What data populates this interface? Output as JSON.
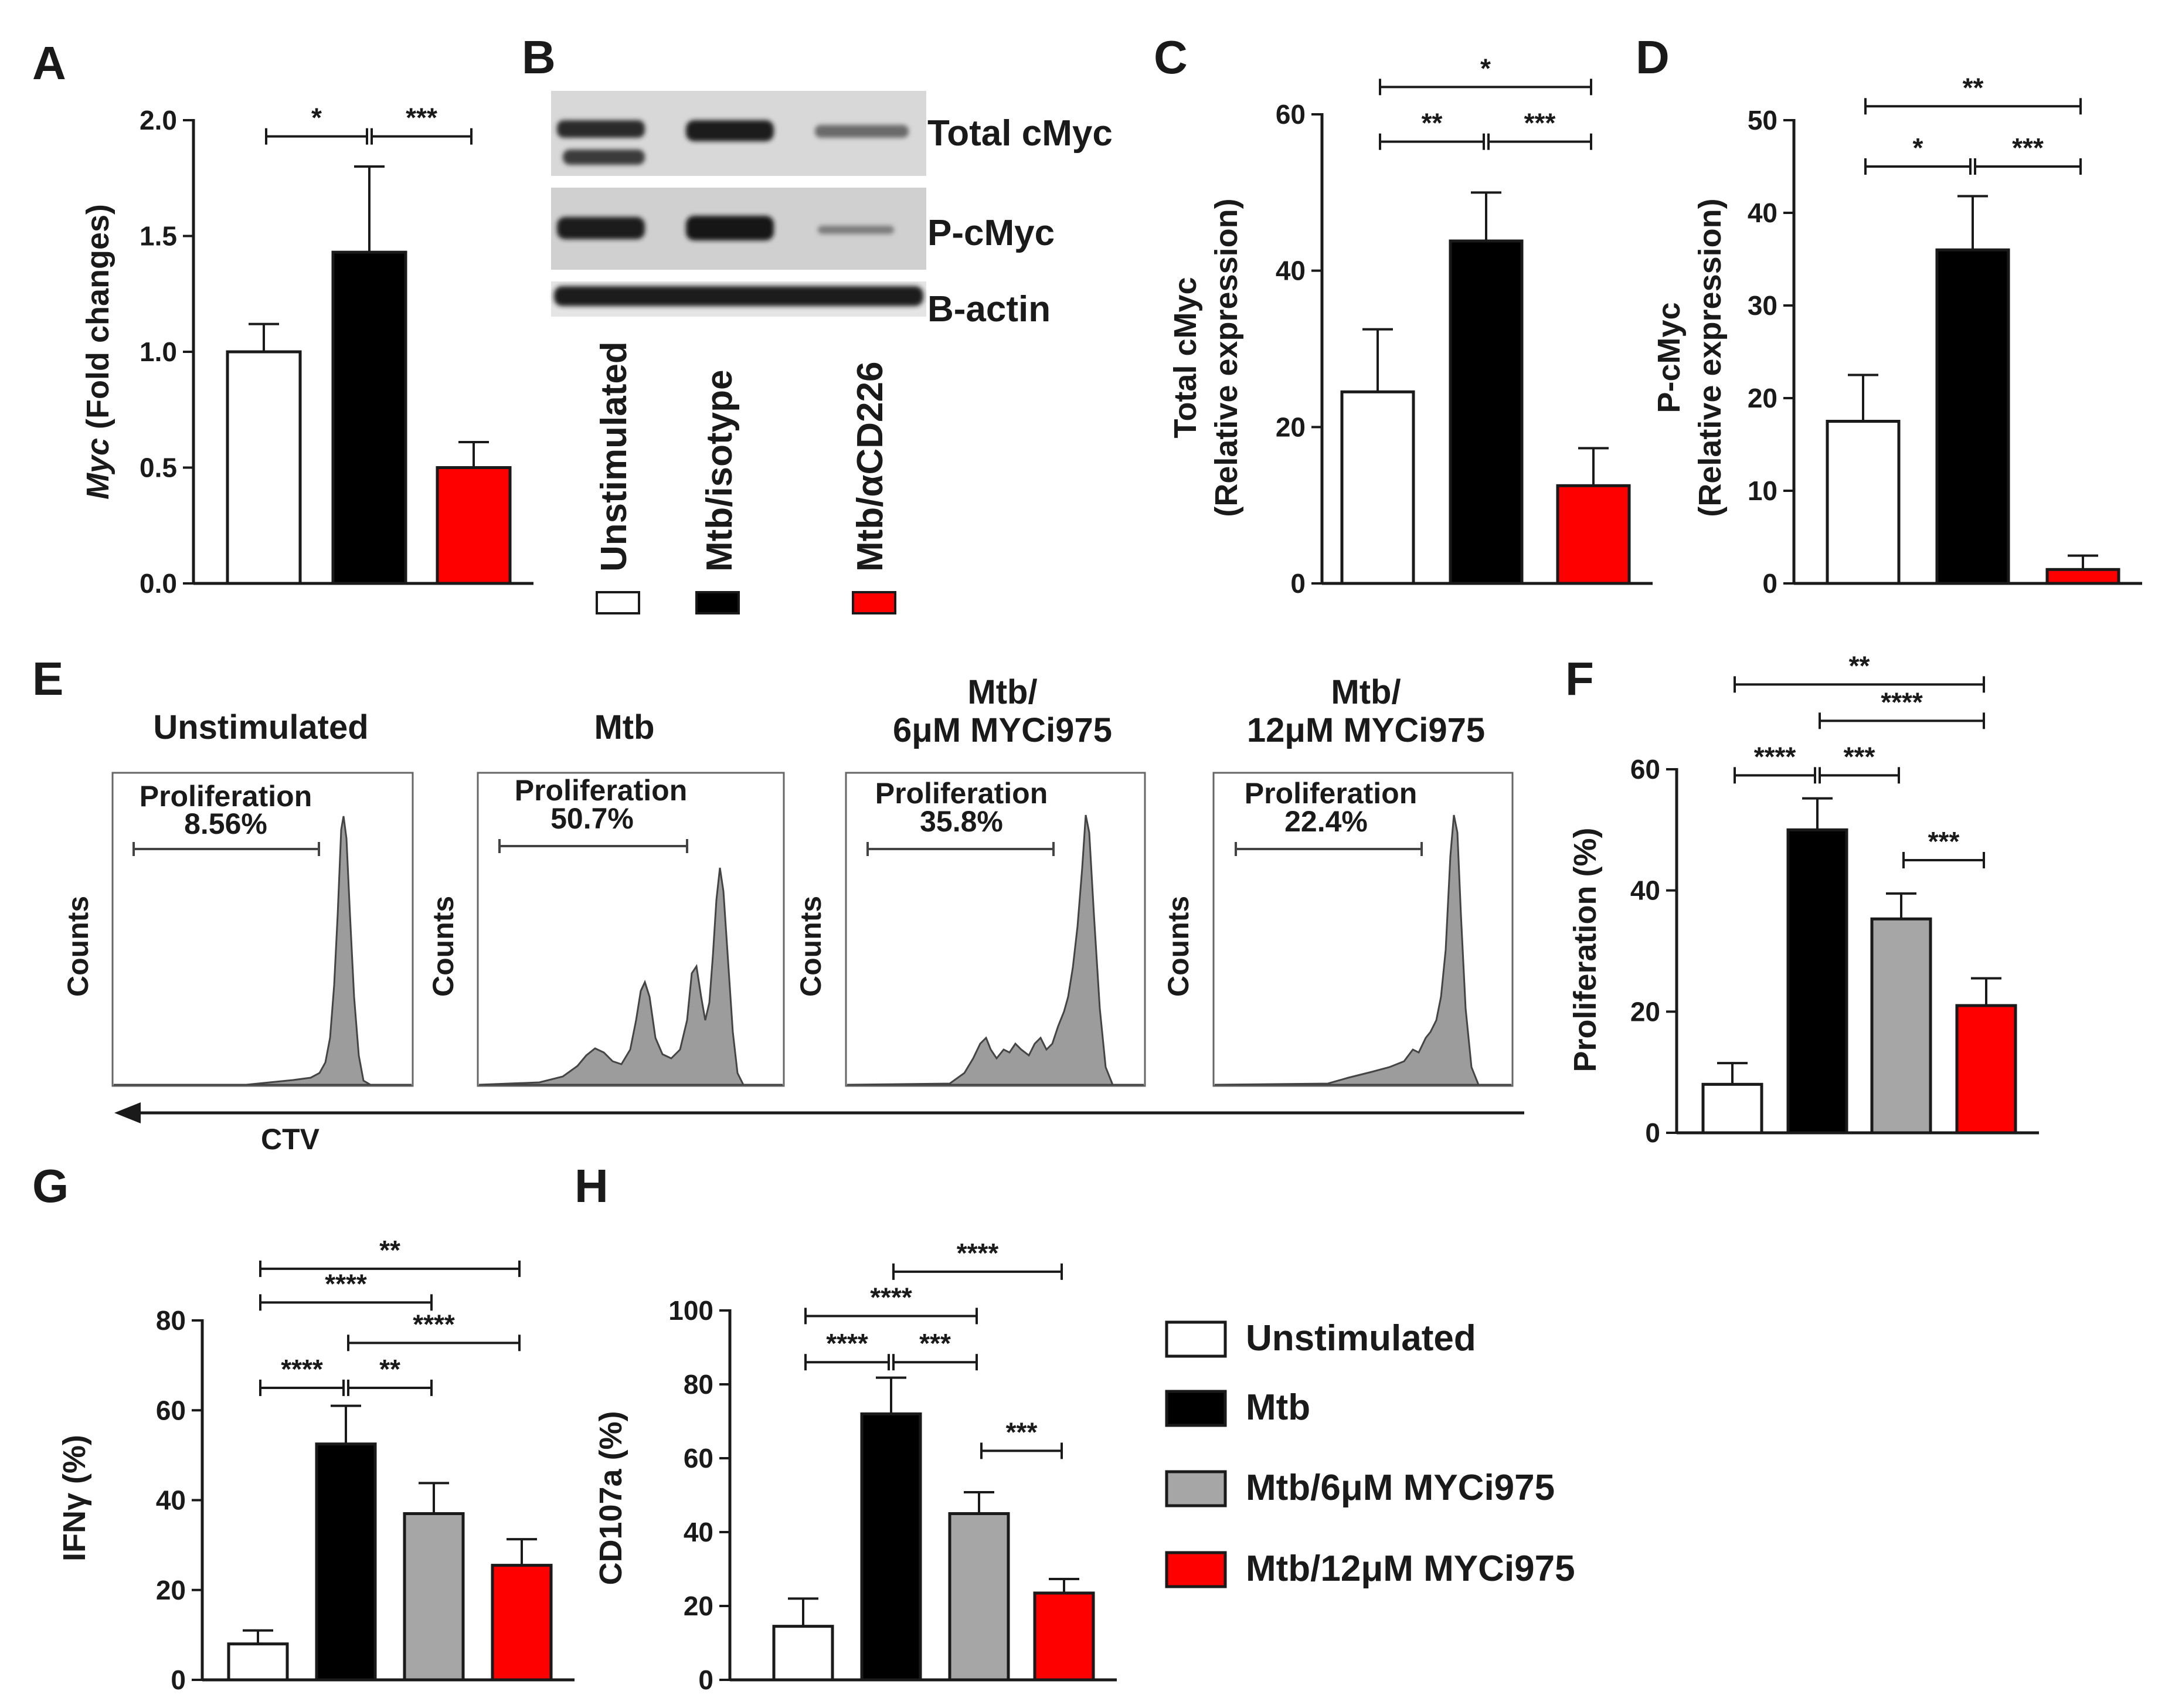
{
  "colors": {
    "unstimulated": "#ffffff",
    "mtb": "#000000",
    "myc6": "#a6a6a6",
    "myc12": "#ff0000",
    "axis": "#1a1a1a",
    "histogram_fill": "#999999"
  },
  "panel_letters": [
    "A",
    "B",
    "C",
    "D",
    "E",
    "F",
    "G",
    "H"
  ],
  "chart_data": [
    {
      "id": "A",
      "type": "bar",
      "title": "",
      "ylabel_italic": "Myc",
      "ylabel": " (Fold changes)",
      "ylim": [
        0,
        2.0
      ],
      "yticks": [
        "0.0",
        "0.5",
        "1.0",
        "1.5",
        "2.0"
      ],
      "ytick_values": [
        0,
        0.5,
        1.0,
        1.5,
        2.0
      ],
      "categories": [
        "Unstimulated",
        "Mtb/isotype",
        "Mtb/αCD226"
      ],
      "values": [
        1.0,
        1.43,
        0.5
      ],
      "errors": [
        0.12,
        0.37,
        0.11
      ],
      "colors": [
        "#ffffff",
        "#000000",
        "#ff0000"
      ],
      "significance": [
        {
          "from": 0,
          "to": 1,
          "y": 1.93,
          "label": "*"
        },
        {
          "from": 1,
          "to": 2,
          "y": 1.93,
          "label": "***"
        }
      ]
    },
    {
      "id": "C",
      "type": "bar",
      "ylabel_lines": [
        "Total cMyc",
        "(Relative expression)"
      ],
      "ylim": [
        0,
        60
      ],
      "yticks": [
        "0",
        "20",
        "40",
        "60"
      ],
      "ytick_values": [
        0,
        20,
        40,
        60
      ],
      "categories": [
        "Unstimulated",
        "Mtb/isotype",
        "Mtb/αCD226"
      ],
      "values": [
        24.5,
        43.8,
        12.5
      ],
      "errors": [
        8.0,
        6.2,
        4.8
      ],
      "colors": [
        "#ffffff",
        "#000000",
        "#ff0000"
      ],
      "significance": [
        {
          "from": 0,
          "to": 1,
          "y": 56.5,
          "label": "**"
        },
        {
          "from": 1,
          "to": 2,
          "y": 56.5,
          "label": "***"
        },
        {
          "from": 0,
          "to": 2,
          "y": 63.5,
          "label": "*"
        }
      ]
    },
    {
      "id": "D",
      "type": "bar",
      "ylabel_lines": [
        "P-cMyc",
        "(Relative expression)"
      ],
      "ylim": [
        0,
        50
      ],
      "yticks": [
        "0",
        "10",
        "20",
        "30",
        "40",
        "50"
      ],
      "ytick_values": [
        0,
        10,
        20,
        30,
        40,
        50
      ],
      "categories": [
        "Unstimulated",
        "Mtb/isotype",
        "Mtb/αCD226"
      ],
      "values": [
        17.5,
        36.0,
        1.5
      ],
      "errors": [
        5.0,
        5.8,
        1.5
      ],
      "colors": [
        "#ffffff",
        "#000000",
        "#ff0000"
      ],
      "significance": [
        {
          "from": 0,
          "to": 1,
          "y": 45.0,
          "label": "*"
        },
        {
          "from": 1,
          "to": 2,
          "y": 45.0,
          "label": "***"
        },
        {
          "from": 0,
          "to": 2,
          "y": 51.5,
          "label": "**"
        }
      ]
    },
    {
      "id": "F",
      "type": "bar",
      "ylabel": "Proliferation  (%)",
      "ylim": [
        0,
        60
      ],
      "yticks": [
        "0",
        "20",
        "40",
        "60"
      ],
      "ytick_values": [
        0,
        20,
        40,
        60
      ],
      "categories": [
        "Unstimulated",
        "Mtb",
        "Mtb/6μM MYCi975",
        "Mtb/12μM MYCi975"
      ],
      "values": [
        8.0,
        50.0,
        35.3,
        21.0
      ],
      "errors": [
        3.5,
        5.2,
        4.2,
        4.5
      ],
      "colors": [
        "#ffffff",
        "#000000",
        "#a6a6a6",
        "#ff0000"
      ],
      "significance": [
        {
          "from": 0,
          "to": 1,
          "y": 59.0,
          "label": "****"
        },
        {
          "from": 1,
          "to": 2,
          "y": 59.0,
          "label": "***"
        },
        {
          "from": 2,
          "to": 3,
          "y": 45.0,
          "label": "***"
        },
        {
          "from": 1,
          "to": 3,
          "y": 68.0,
          "label": "****"
        },
        {
          "from": 0,
          "to": 3,
          "y": 74.0,
          "label": "**"
        }
      ]
    },
    {
      "id": "G",
      "type": "bar",
      "ylabel": "IFNγ  (%)",
      "ylim": [
        0,
        80
      ],
      "yticks": [
        "0",
        "20",
        "40",
        "60",
        "80"
      ],
      "ytick_values": [
        0,
        20,
        40,
        60,
        80
      ],
      "categories": [
        "Unstimulated",
        "Mtb",
        "Mtb/6μM MYCi975",
        "Mtb/12μM MYCi975"
      ],
      "values": [
        8.0,
        52.5,
        37.0,
        25.5
      ],
      "errors": [
        3.0,
        8.5,
        6.8,
        5.8
      ],
      "colors": [
        "#ffffff",
        "#000000",
        "#a6a6a6",
        "#ff0000"
      ],
      "significance": [
        {
          "from": 0,
          "to": 1,
          "y": 65.0,
          "label": "****"
        },
        {
          "from": 1,
          "to": 2,
          "y": 65.0,
          "label": "**"
        },
        {
          "from": 1,
          "to": 3,
          "y": 75.0,
          "label": "****"
        },
        {
          "from": 0,
          "to": 2,
          "y": 84.0,
          "label": "****"
        },
        {
          "from": 0,
          "to": 3,
          "y": 91.5,
          "label": "**"
        }
      ]
    },
    {
      "id": "H",
      "type": "bar",
      "ylabel": "CD107a  (%)",
      "ylim": [
        0,
        100
      ],
      "yticks": [
        "0",
        "20",
        "40",
        "60",
        "80",
        "100"
      ],
      "ytick_values": [
        0,
        20,
        40,
        60,
        80,
        100
      ],
      "categories": [
        "Unstimulated",
        "Mtb",
        "Mtb/6μM MYCi975",
        "Mtb/12μM MYCi975"
      ],
      "values": [
        14.5,
        72.0,
        45.0,
        23.5
      ],
      "errors": [
        7.5,
        9.8,
        5.8,
        3.8
      ],
      "colors": [
        "#ffffff",
        "#000000",
        "#a6a6a6",
        "#ff0000"
      ],
      "significance": [
        {
          "from": 0,
          "to": 1,
          "y": 86.0,
          "label": "****"
        },
        {
          "from": 1,
          "to": 2,
          "y": 86.0,
          "label": "***"
        },
        {
          "from": 2,
          "to": 3,
          "y": 62.0,
          "label": "***"
        },
        {
          "from": 0,
          "to": 2,
          "y": 98.5,
          "label": "****"
        },
        {
          "from": 1,
          "to": 3,
          "y": 110.5,
          "label": "****"
        }
      ]
    }
  ],
  "blot": {
    "bands": [
      "Total cMyc",
      "P-cMyc",
      "B-actin"
    ],
    "lanes": [
      "Unstimulated",
      "Mtb/isotype",
      "Mtb/αCD226"
    ],
    "lane_colors": [
      "#ffffff",
      "#000000",
      "#ff0000"
    ]
  },
  "flow": {
    "y_label": "Counts",
    "x_label": "CTV",
    "gate_label": "Proliferation",
    "panels": [
      {
        "title_lines": [
          "Unstimulated"
        ],
        "percent": "8.56%"
      },
      {
        "title_lines": [
          "Mtb"
        ],
        "percent": "50.7%"
      },
      {
        "title_lines": [
          "Mtb/",
          "6μM MYCi975"
        ],
        "percent": "35.8%"
      },
      {
        "title_lines": [
          "Mtb/",
          "12μM MYCi975"
        ],
        "percent": "22.4%"
      }
    ]
  },
  "legend": {
    "items": [
      {
        "label": "Unstimulated",
        "color": "#ffffff"
      },
      {
        "label": "Mtb",
        "color": "#000000"
      },
      {
        "label": "Mtb/6μM MYCi975",
        "color": "#a6a6a6"
      },
      {
        "label": "Mtb/12μM MYCi975",
        "color": "#ff0000"
      }
    ]
  }
}
